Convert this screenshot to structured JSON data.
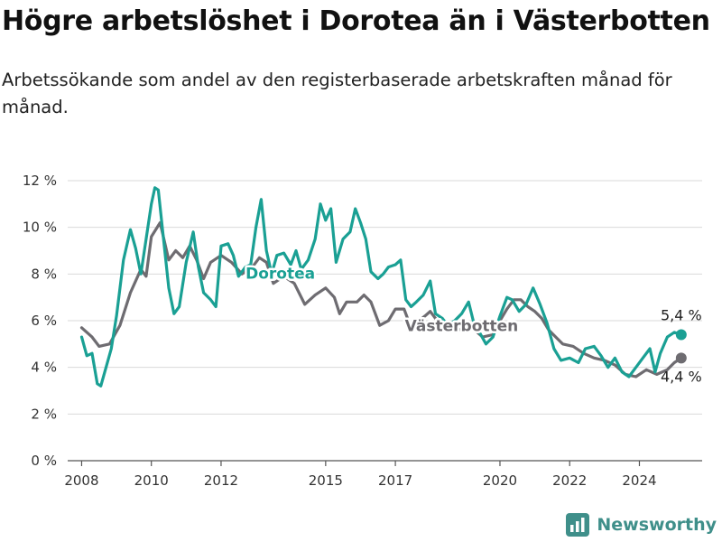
{
  "header": {
    "title": "Högre arbetslöshet i Dorotea än i Västerbotten",
    "subtitle": "Arbetssökande som andel av den registerbaserade arbetskraften månad för månad."
  },
  "brand": {
    "name": "Newsworthy",
    "icon": "newsworthy-logo-icon",
    "color": "#3f8f8a"
  },
  "chart_data": {
    "type": "line",
    "title": "Högre arbetslöshet i Dorotea än i Västerbotten",
    "subtitle": "Arbetssökande som andel av den registerbaserade arbetskraften månad för månad.",
    "x_axis": {
      "range": [
        2007.6,
        2025.8
      ],
      "ticks": [
        2008,
        2010,
        2012,
        2015,
        2017,
        2020,
        2022,
        2024
      ],
      "tick_labels": [
        "2008",
        "2010",
        "2012",
        "2015",
        "2017",
        "2020",
        "2022",
        "2024"
      ]
    },
    "y_axis": {
      "range": [
        0,
        12
      ],
      "ticks": [
        0,
        2,
        4,
        6,
        8,
        10,
        12
      ],
      "tick_labels": [
        "0 %",
        "2 %",
        "4 %",
        "6 %",
        "8 %",
        "10 %",
        "12 %"
      ],
      "grid": true
    },
    "legend": "inline labels",
    "series": [
      {
        "name": "Västerbotten",
        "color": "#6e6c71",
        "end_label": "4,4 %",
        "points": [
          [
            2008.0,
            5.7
          ],
          [
            2008.3,
            5.3
          ],
          [
            2008.5,
            4.9
          ],
          [
            2008.8,
            5.0
          ],
          [
            2009.1,
            5.8
          ],
          [
            2009.4,
            7.2
          ],
          [
            2009.7,
            8.2
          ],
          [
            2009.85,
            7.9
          ],
          [
            2010.0,
            9.6
          ],
          [
            2010.25,
            10.2
          ],
          [
            2010.5,
            8.6
          ],
          [
            2010.7,
            9.0
          ],
          [
            2010.9,
            8.7
          ],
          [
            2011.1,
            9.2
          ],
          [
            2011.3,
            8.6
          ],
          [
            2011.5,
            7.8
          ],
          [
            2011.7,
            8.5
          ],
          [
            2012.0,
            8.8
          ],
          [
            2012.3,
            8.5
          ],
          [
            2012.6,
            8.0
          ],
          [
            2012.9,
            8.3
          ],
          [
            2013.1,
            8.7
          ],
          [
            2013.3,
            8.5
          ],
          [
            2013.5,
            7.6
          ],
          [
            2013.8,
            7.9
          ],
          [
            2014.1,
            7.6
          ],
          [
            2014.4,
            6.7
          ],
          [
            2014.7,
            7.1
          ],
          [
            2015.0,
            7.4
          ],
          [
            2015.25,
            7.0
          ],
          [
            2015.4,
            6.3
          ],
          [
            2015.6,
            6.8
          ],
          [
            2015.9,
            6.8
          ],
          [
            2016.1,
            7.1
          ],
          [
            2016.3,
            6.8
          ],
          [
            2016.55,
            5.8
          ],
          [
            2016.8,
            6.0
          ],
          [
            2017.0,
            6.5
          ],
          [
            2017.25,
            6.5
          ],
          [
            2017.4,
            5.9
          ],
          [
            2017.6,
            5.9
          ],
          [
            2017.85,
            6.2
          ],
          [
            2018.0,
            6.4
          ],
          [
            2018.3,
            5.8
          ],
          [
            2018.6,
            5.7
          ],
          [
            2018.9,
            5.6
          ],
          [
            2019.2,
            5.7
          ],
          [
            2019.5,
            5.3
          ],
          [
            2019.8,
            5.4
          ],
          [
            2020.0,
            6.0
          ],
          [
            2020.2,
            6.5
          ],
          [
            2020.4,
            6.9
          ],
          [
            2020.6,
            6.9
          ],
          [
            2020.8,
            6.6
          ],
          [
            2021.0,
            6.4
          ],
          [
            2021.2,
            6.1
          ],
          [
            2021.4,
            5.6
          ],
          [
            2021.6,
            5.3
          ],
          [
            2021.8,
            5.0
          ],
          [
            2022.1,
            4.9
          ],
          [
            2022.4,
            4.6
          ],
          [
            2022.7,
            4.4
          ],
          [
            2023.0,
            4.3
          ],
          [
            2023.3,
            4.1
          ],
          [
            2023.6,
            3.7
          ],
          [
            2023.9,
            3.6
          ],
          [
            2024.2,
            3.9
          ],
          [
            2024.5,
            3.7
          ],
          [
            2024.8,
            3.9
          ],
          [
            2025.0,
            4.2
          ],
          [
            2025.2,
            4.4
          ]
        ]
      },
      {
        "name": "Dorotea",
        "color": "#1aa094",
        "end_label": "5,4 %",
        "points": [
          [
            2008.0,
            5.3
          ],
          [
            2008.15,
            4.5
          ],
          [
            2008.3,
            4.6
          ],
          [
            2008.45,
            3.3
          ],
          [
            2008.55,
            3.2
          ],
          [
            2008.7,
            4.0
          ],
          [
            2008.85,
            4.8
          ],
          [
            2009.0,
            6.2
          ],
          [
            2009.2,
            8.6
          ],
          [
            2009.4,
            9.9
          ],
          [
            2009.55,
            9.1
          ],
          [
            2009.7,
            8.0
          ],
          [
            2009.85,
            9.5
          ],
          [
            2010.0,
            11.0
          ],
          [
            2010.1,
            11.7
          ],
          [
            2010.2,
            11.6
          ],
          [
            2010.35,
            9.5
          ],
          [
            2010.5,
            7.4
          ],
          [
            2010.65,
            6.3
          ],
          [
            2010.8,
            6.6
          ],
          [
            2011.0,
            8.5
          ],
          [
            2011.2,
            9.8
          ],
          [
            2011.35,
            8.3
          ],
          [
            2011.5,
            7.2
          ],
          [
            2011.7,
            6.9
          ],
          [
            2011.85,
            6.6
          ],
          [
            2012.0,
            9.2
          ],
          [
            2012.2,
            9.3
          ],
          [
            2012.35,
            8.8
          ],
          [
            2012.5,
            7.9
          ],
          [
            2012.7,
            8.3
          ],
          [
            2012.85,
            8.4
          ],
          [
            2013.0,
            10.0
          ],
          [
            2013.15,
            11.2
          ],
          [
            2013.3,
            9.0
          ],
          [
            2013.45,
            8.0
          ],
          [
            2013.6,
            8.8
          ],
          [
            2013.8,
            8.9
          ],
          [
            2014.0,
            8.4
          ],
          [
            2014.15,
            9.0
          ],
          [
            2014.3,
            8.2
          ],
          [
            2014.5,
            8.6
          ],
          [
            2014.7,
            9.5
          ],
          [
            2014.85,
            11.0
          ],
          [
            2015.0,
            10.3
          ],
          [
            2015.15,
            10.8
          ],
          [
            2015.3,
            8.5
          ],
          [
            2015.5,
            9.5
          ],
          [
            2015.7,
            9.8
          ],
          [
            2015.85,
            10.8
          ],
          [
            2016.0,
            10.2
          ],
          [
            2016.15,
            9.5
          ],
          [
            2016.3,
            8.1
          ],
          [
            2016.5,
            7.8
          ],
          [
            2016.65,
            8.0
          ],
          [
            2016.8,
            8.3
          ],
          [
            2017.0,
            8.4
          ],
          [
            2017.15,
            8.6
          ],
          [
            2017.3,
            6.9
          ],
          [
            2017.45,
            6.6
          ],
          [
            2017.6,
            6.8
          ],
          [
            2017.8,
            7.1
          ],
          [
            2018.0,
            7.7
          ],
          [
            2018.15,
            6.3
          ],
          [
            2018.35,
            6.1
          ],
          [
            2018.5,
            5.8
          ],
          [
            2018.7,
            6.0
          ],
          [
            2018.9,
            6.3
          ],
          [
            2019.1,
            6.8
          ],
          [
            2019.25,
            5.9
          ],
          [
            2019.45,
            5.4
          ],
          [
            2019.6,
            5.0
          ],
          [
            2019.8,
            5.3
          ],
          [
            2020.0,
            6.2
          ],
          [
            2020.2,
            7.0
          ],
          [
            2020.35,
            6.9
          ],
          [
            2020.55,
            6.4
          ],
          [
            2020.75,
            6.7
          ],
          [
            2020.95,
            7.4
          ],
          [
            2021.15,
            6.7
          ],
          [
            2021.35,
            5.9
          ],
          [
            2021.55,
            4.8
          ],
          [
            2021.75,
            4.3
          ],
          [
            2022.0,
            4.4
          ],
          [
            2022.25,
            4.2
          ],
          [
            2022.45,
            4.8
          ],
          [
            2022.7,
            4.9
          ],
          [
            2022.9,
            4.5
          ],
          [
            2023.1,
            4.0
          ],
          [
            2023.3,
            4.4
          ],
          [
            2023.5,
            3.8
          ],
          [
            2023.7,
            3.6
          ],
          [
            2023.9,
            4.0
          ],
          [
            2024.1,
            4.4
          ],
          [
            2024.3,
            4.8
          ],
          [
            2024.45,
            3.8
          ],
          [
            2024.6,
            4.6
          ],
          [
            2024.8,
            5.3
          ],
          [
            2025.0,
            5.5
          ],
          [
            2025.2,
            5.4
          ]
        ]
      }
    ]
  }
}
